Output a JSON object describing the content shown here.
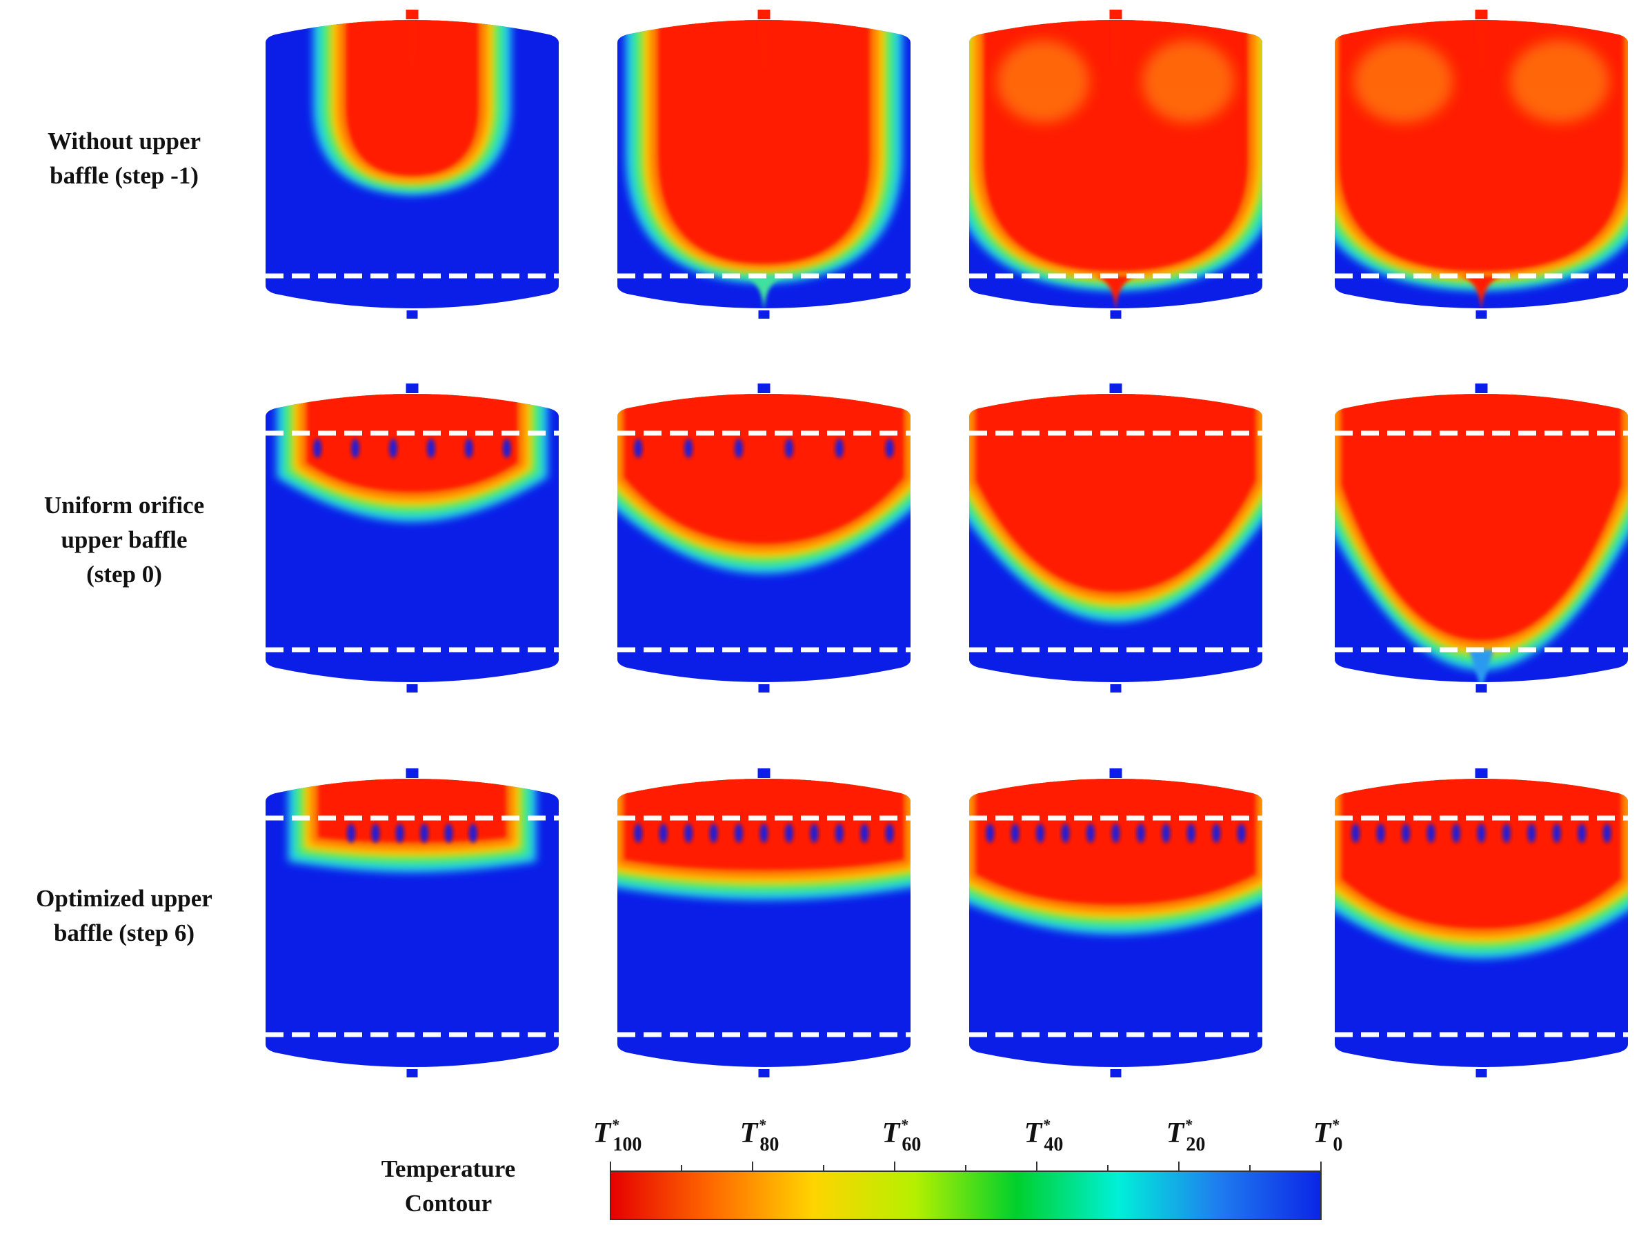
{
  "rows": [
    {
      "label_lines": [
        "Without upper",
        "baffle (step -1)"
      ],
      "case": "no_baffle",
      "upper_baffle": false
    },
    {
      "label_lines": [
        "Uniform orifice",
        "upper baffle",
        "(step 0)"
      ],
      "case": "uniform",
      "upper_baffle": true
    },
    {
      "label_lines": [
        "Optimized upper",
        "baffle (step 6)"
      ],
      "case": "optimized",
      "upper_baffle": true
    }
  ],
  "time_steps_per_row": 4,
  "legend": {
    "title_lines": [
      "Temperature",
      "Contour"
    ],
    "ticks": [
      {
        "symbol": "T",
        "sup": "*",
        "sub": "100"
      },
      {
        "symbol": "T",
        "sup": "*",
        "sub": "80"
      },
      {
        "symbol": "T",
        "sup": "*",
        "sub": "60"
      },
      {
        "symbol": "T",
        "sup": "*",
        "sub": "40"
      },
      {
        "symbol": "T",
        "sup": "*",
        "sub": "20"
      },
      {
        "symbol": "T",
        "sup": "*",
        "sub": "0"
      }
    ],
    "colors": [
      "#e60000",
      "#ff6a00",
      "#ffd400",
      "#b5f000",
      "#00d02c",
      "#00f0d8",
      "#1f7cf0",
      "#0b25e6"
    ]
  },
  "palette": {
    "hot": "#ff1e00",
    "cold": "#0a1ee8",
    "baffle_line": "#ffffff"
  }
}
